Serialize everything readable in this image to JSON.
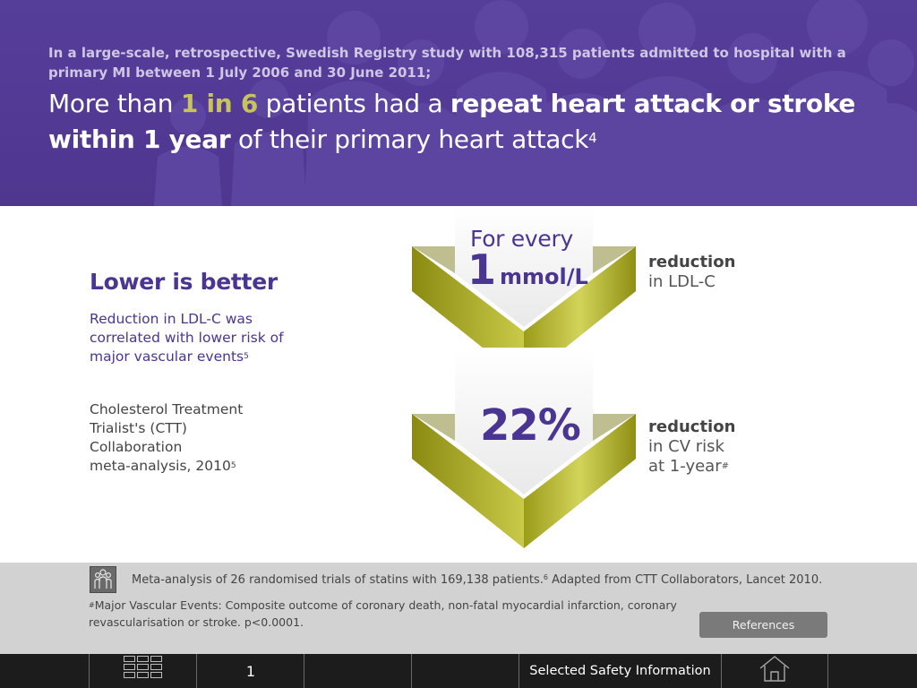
{
  "header": {
    "intro": "In a large-scale, retrospective, Swedish Registry study with 108,315 patients admitted to hospital with a primary MI between 1 July 2006 and 30 June 2011;",
    "headline_pre": "More than ",
    "headline_accent": "1 in 6",
    "headline_mid": " patients had a ",
    "headline_bold1": "repeat heart attack or stroke",
    "headline_bold2": "within 1 year",
    "headline_post": " of their primary heart attack",
    "headline_ref": "4"
  },
  "left": {
    "title": "Lower is better",
    "body": "Reduction in LDL-C was correlated with lower risk of major vascular events",
    "body_ref": "5",
    "ctt_line1": "Cholesterol Treatment",
    "ctt_line2": "Trialist's (CTT)",
    "ctt_line3": "Collaboration",
    "ctt_line4": "meta-analysis, 2010",
    "ctt_ref": "5"
  },
  "chevron_top": {
    "for_every": "For every",
    "number": "1",
    "unit": "mmol/L",
    "side_bold": "reduction",
    "side_text": "in LDL-C"
  },
  "chevron_bottom": {
    "percent": "22%",
    "side_bold": "reduction",
    "side_text1": "in CV risk",
    "side_text2": "at 1-year",
    "side_ref": "#"
  },
  "footnotes": {
    "line1_a": "Meta-analysis of 26 randomised trials of statins with 169,138 patients.",
    "line1_ref": "6",
    "line1_b": " Adapted from CTT Collaborators, Lancet 2010.",
    "line2_ref": "#",
    "line2": "Major Vascular Events: Composite outcome of coronary death, non-fatal myocardial infarction, coronary revascularisation or stroke. p<0.0001.",
    "references_label": "References"
  },
  "nav": {
    "page_number": "1",
    "safety_label": "Selected Safety Information"
  },
  "colors": {
    "banner": "#553d9a",
    "accent_olive": "#c8c35c",
    "purple_text": "#4a3592",
    "chevron_green": "#b5b52a",
    "footnote_band": "#d2d2d2",
    "nav_bar": "#1c1c1c"
  },
  "icons": {
    "footnote": "people-group-icon",
    "grid": "grid-menu-icon",
    "home": "home-icon"
  }
}
